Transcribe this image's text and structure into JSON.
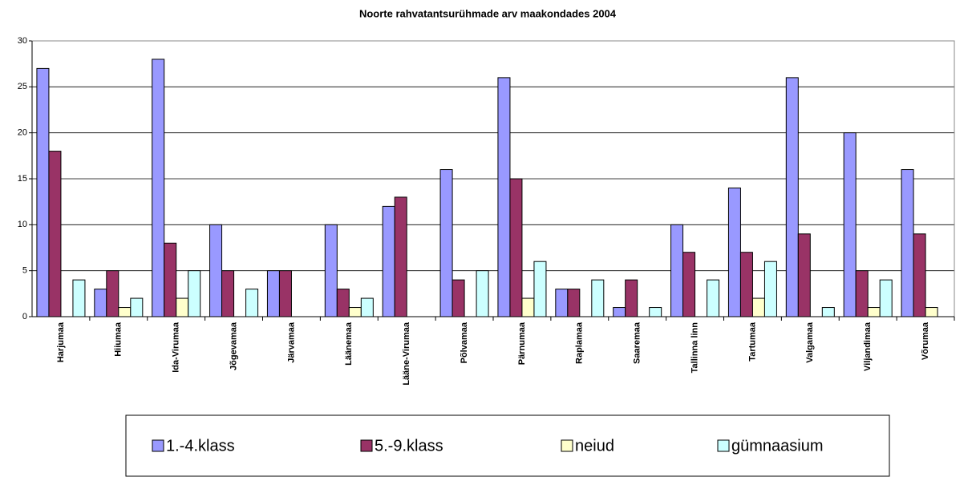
{
  "chart_data": {
    "type": "bar",
    "title": "Noorte rahvatantsurühmade arv maakondades 2004",
    "categories": [
      "Harjumaa",
      "Hiiumaa",
      "Ida-Virumaa",
      "Jõgevamaa",
      "Järvamaa",
      "Läänemaa",
      "Lääne-Virumaa",
      "Põlvamaa",
      "Pärnumaa",
      "Raplamaa",
      "Saaremaa",
      "Tallinna linn",
      "Tartumaa",
      "Valgamaa",
      "Viljandimaa",
      "Võrumaa"
    ],
    "series": [
      {
        "name": "1.-4.klass",
        "color": "#9999ff",
        "values": [
          27,
          3,
          28,
          10,
          5,
          10,
          12,
          16,
          26,
          3,
          1,
          10,
          14,
          26,
          20,
          16
        ]
      },
      {
        "name": "5.-9.klass",
        "color": "#993366",
        "values": [
          18,
          5,
          8,
          5,
          5,
          3,
          13,
          4,
          15,
          3,
          4,
          7,
          7,
          9,
          5,
          9
        ]
      },
      {
        "name": "neiud",
        "color": "#ffffcc",
        "values": [
          0,
          1,
          2,
          0,
          0,
          1,
          0,
          0,
          2,
          0,
          0,
          0,
          2,
          0,
          1,
          1
        ]
      },
      {
        "name": "gümnaasium",
        "color": "#ccffff",
        "values": [
          4,
          2,
          5,
          3,
          0,
          2,
          0,
          5,
          6,
          4,
          1,
          4,
          6,
          1,
          4,
          0
        ]
      }
    ],
    "ylim": [
      0,
      30
    ],
    "yticks": [
      0,
      5,
      10,
      15,
      20,
      25,
      30
    ],
    "grid": true,
    "legend": "bottom"
  }
}
